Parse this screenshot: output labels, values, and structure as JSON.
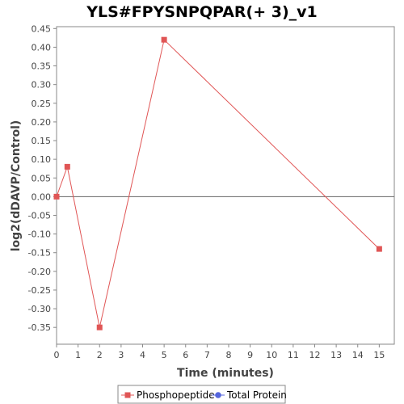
{
  "chart_data": {
    "type": "line",
    "title": "YLS#FPYSNPQPAR(+ 3)_v1",
    "xlabel": "Time (minutes)",
    "ylabel": "log2(dDAVP/Control)",
    "xlim": [
      0,
      15.7
    ],
    "ylim": [
      -0.395,
      0.455
    ],
    "x_ticks": [
      0,
      1,
      2,
      3,
      4,
      5,
      6,
      7,
      8,
      9,
      10,
      11,
      12,
      13,
      14,
      15
    ],
    "y_ticks": [
      0.45,
      0.4,
      0.35,
      0.3,
      0.25,
      0.2,
      0.15,
      0.1,
      0.05,
      0.0,
      -0.05,
      -0.1,
      -0.15,
      -0.2,
      -0.25,
      -0.3,
      -0.35
    ],
    "y_tick_labels": [
      "0.45",
      "0.40",
      "0.35",
      "0.30",
      "0.25",
      "0.20",
      "0.15",
      "0.10",
      "0.05",
      "0.00",
      "-0.05",
      "-0.10",
      "-0.15",
      "-0.20",
      "-0.25",
      "-0.30",
      "-0.35"
    ],
    "zero_line": true,
    "grid": false,
    "legend_position": "bottom",
    "series": [
      {
        "name": "Phosphopeptide",
        "color": "#e05555",
        "marker": "square",
        "points": [
          {
            "x": 0,
            "y": 0.0
          },
          {
            "x": 0.5,
            "y": 0.08
          },
          {
            "x": 2,
            "y": -0.35
          },
          {
            "x": 5,
            "y": 0.42
          },
          {
            "x": 15,
            "y": -0.14
          }
        ]
      },
      {
        "name": "Total Protein",
        "color": "#5566dd",
        "marker": "circle",
        "points": []
      }
    ]
  }
}
